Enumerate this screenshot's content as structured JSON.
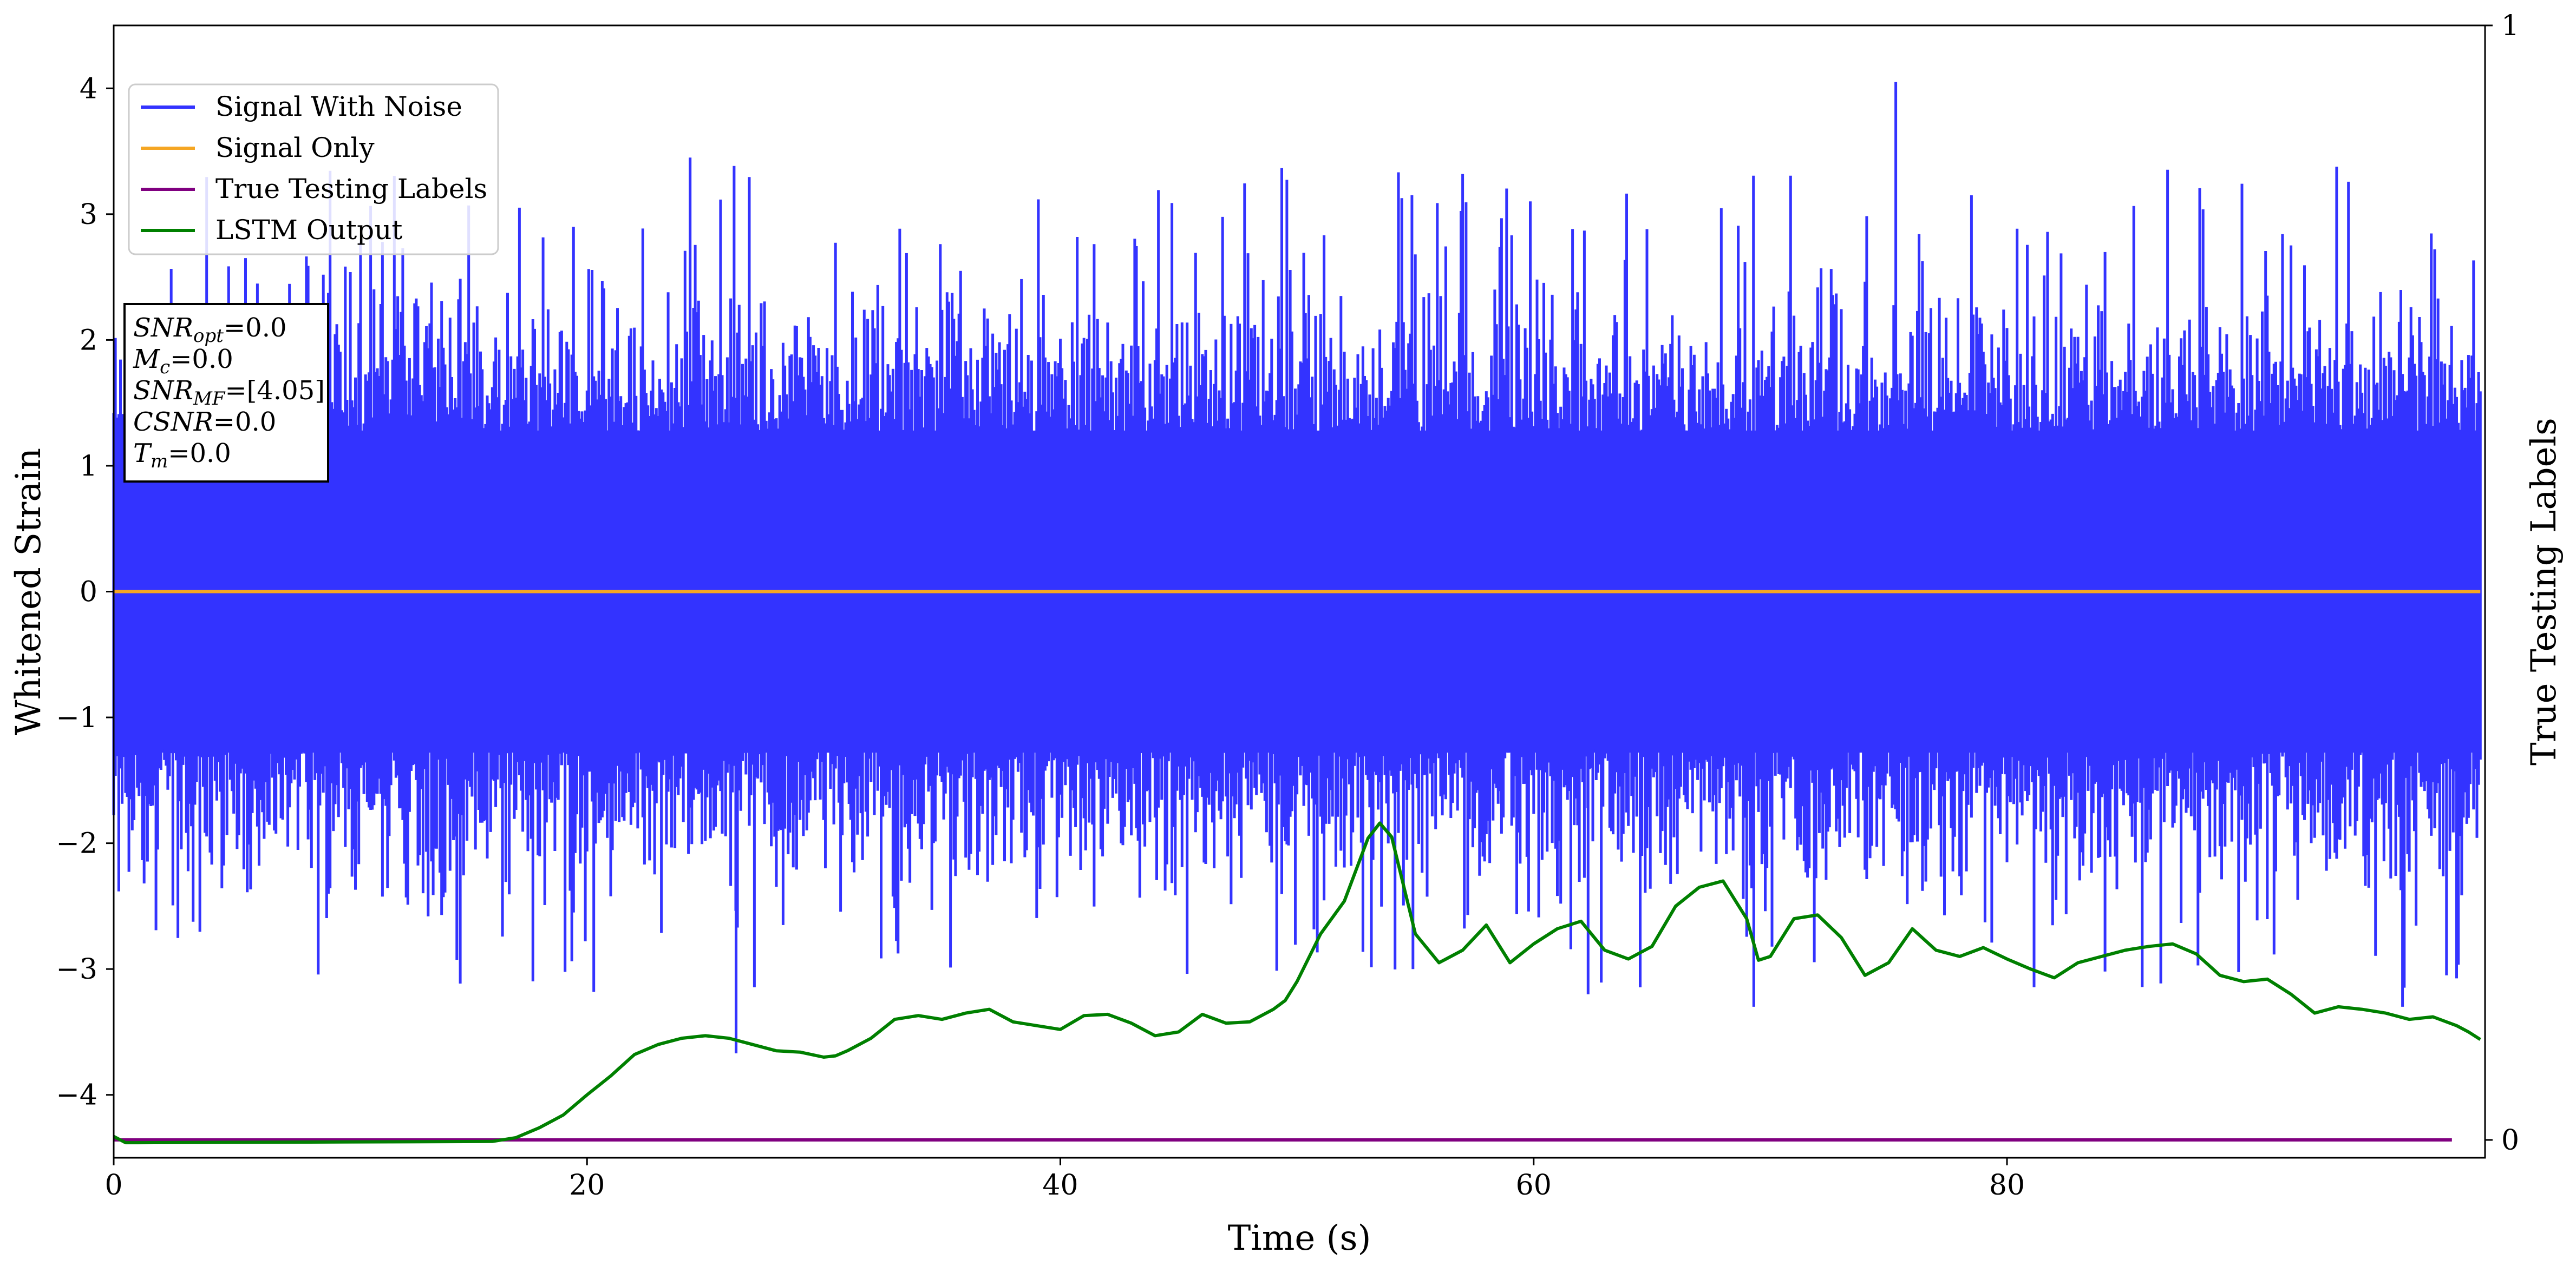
{
  "chart_data": {
    "type": "line",
    "title": "",
    "xlabel": "Time (s)",
    "ylabel": "Whitened Strain",
    "ylabel_right": "True Testing Labels",
    "xlim": [
      0,
      100.2
    ],
    "ylim": [
      -4.5,
      4.5
    ],
    "ylim_right": [
      -0.016,
      1.0
    ],
    "x_ticks": [
      0,
      20,
      40,
      60,
      80
    ],
    "y_ticks": [
      -4,
      -3,
      -2,
      -1,
      0,
      1,
      2,
      3,
      4
    ],
    "y_ticks_right": [
      0,
      1
    ],
    "legend_placement": "upper-left",
    "grid": false,
    "series": [
      {
        "name": "Signal With Noise",
        "axis": "left",
        "color": "#3333ff",
        "style": "dense noise band, roughly within [-1.3, 1.3] with spikes to about 4.05 and -3.7",
        "x_range": [
          0,
          100
        ],
        "peak_max": 4.05,
        "peak_min": -3.67
      },
      {
        "name": "Signal Only",
        "axis": "left",
        "color": "#f5a623",
        "x": [
          0,
          100
        ],
        "y": [
          0,
          0
        ]
      },
      {
        "name": "True Testing Labels",
        "axis": "right",
        "color": "#800080",
        "x": [
          0,
          98.8
        ],
        "y": [
          0,
          0
        ]
      },
      {
        "name": "LSTM Output",
        "axis": "left",
        "color": "#008000",
        "x": [
          0,
          0.5,
          1,
          16,
          17,
          18,
          19,
          20,
          21,
          22,
          23,
          24,
          25,
          26,
          27,
          28,
          29,
          30,
          30.5,
          31,
          32,
          33,
          34,
          35,
          36,
          37,
          38,
          39,
          40,
          41,
          42,
          43,
          44,
          45,
          46,
          47,
          48,
          49,
          49.5,
          50,
          51,
          52,
          53,
          53.5,
          54,
          55,
          56,
          57,
          58,
          59,
          60,
          61,
          62,
          63,
          64,
          65,
          66,
          67,
          68,
          69,
          69.5,
          70,
          71,
          72,
          73,
          74,
          75,
          76,
          77,
          78,
          79,
          80,
          81,
          82,
          83,
          84,
          85,
          86,
          87,
          88,
          89,
          90,
          91,
          92,
          93,
          94,
          95,
          96,
          97,
          98,
          99,
          99.5,
          100
        ],
        "y": [
          -4.33,
          -4.38,
          -4.38,
          -4.37,
          -4.34,
          -4.26,
          -4.16,
          -4.0,
          -3.85,
          -3.68,
          -3.6,
          -3.55,
          -3.53,
          -3.55,
          -3.6,
          -3.65,
          -3.66,
          -3.7,
          -3.69,
          -3.65,
          -3.55,
          -3.4,
          -3.37,
          -3.4,
          -3.35,
          -3.32,
          -3.42,
          -3.45,
          -3.48,
          -3.37,
          -3.36,
          -3.43,
          -3.53,
          -3.5,
          -3.36,
          -3.43,
          -3.42,
          -3.32,
          -3.25,
          -3.1,
          -2.72,
          -2.46,
          -1.96,
          -1.84,
          -1.95,
          -2.72,
          -2.95,
          -2.85,
          -2.65,
          -2.95,
          -2.8,
          -2.68,
          -2.62,
          -2.85,
          -2.92,
          -2.82,
          -2.5,
          -2.35,
          -2.3,
          -2.6,
          -2.93,
          -2.9,
          -2.6,
          -2.57,
          -2.75,
          -3.05,
          -2.95,
          -2.68,
          -2.85,
          -2.9,
          -2.83,
          -2.92,
          -3.0,
          -3.07,
          -2.95,
          -2.9,
          -2.85,
          -2.82,
          -2.8,
          -2.88,
          -3.05,
          -3.1,
          -3.08,
          -3.2,
          -3.35,
          -3.3,
          -3.32,
          -3.35,
          -3.4,
          -3.38,
          -3.45,
          -3.5,
          -3.56
        ]
      }
    ],
    "info_box": [
      {
        "sym": "SNR",
        "sub": "opt",
        "value": "=0.0"
      },
      {
        "sym": "M",
        "sub": "c",
        "value": "=0.0"
      },
      {
        "sym": "SNR",
        "sub": "MF",
        "value": "=[4.05]"
      },
      {
        "sym": "CSNR",
        "sub": "",
        "value": "=0.0"
      },
      {
        "sym": "T",
        "sub": "m",
        "value": "=0.0"
      }
    ]
  }
}
